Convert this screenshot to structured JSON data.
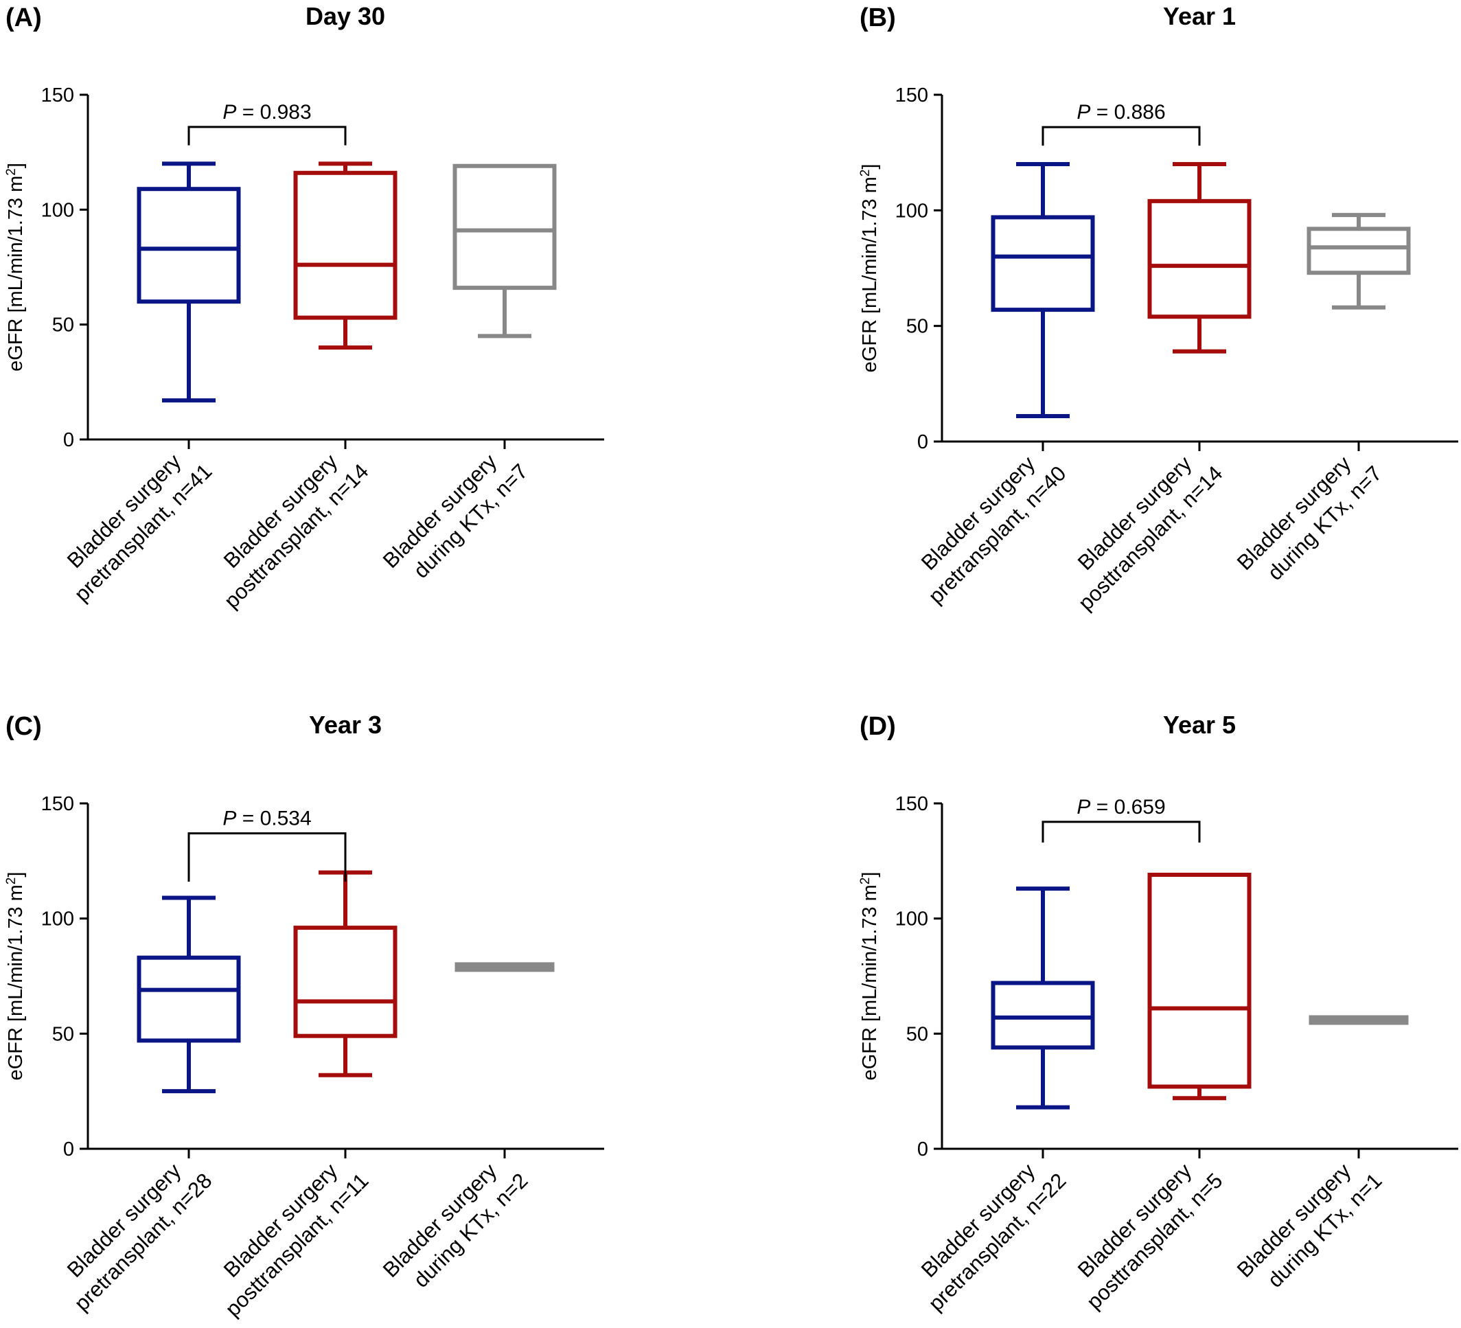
{
  "colors": {
    "pretransplant": "#0a1586",
    "posttransplant": "#a50d0d",
    "during_ktx": "#888888",
    "axis": "#000000"
  },
  "chart_data": [
    {
      "type": "box",
      "panel_label": "(A)",
      "title": "Day 30",
      "ylabel": "eGFR [mL/min/1.73 m2]",
      "ylim": [
        0,
        150
      ],
      "yticks": [
        0,
        50,
        100,
        150
      ],
      "ytick_labels": [
        "0",
        "50",
        "100",
        "150"
      ],
      "categories": [
        {
          "line1": "Bladder surgery",
          "line2": "pretransplant, n=41",
          "color_key": "pretransplant",
          "min": 17,
          "q1": 60,
          "median": 83,
          "q3": 109,
          "max": 120
        },
        {
          "line1": "Bladder surgery",
          "line2": "posttransplant, n=14",
          "color_key": "posttransplant",
          "min": 40,
          "q1": 53,
          "median": 76,
          "q3": 116,
          "max": 120
        },
        {
          "line1": "Bladder surgery",
          "line2": "during KTx, n=7",
          "color_key": "during_ktx",
          "min": 45,
          "q1": 66,
          "median": 91,
          "q3": 119,
          "max": 119
        }
      ],
      "comparison": {
        "from": 0,
        "to": 1,
        "p_symbol": "P",
        "p_text": " = 0.983",
        "bracket_y": 136,
        "drop_to": 128
      }
    },
    {
      "type": "box",
      "panel_label": "(B)",
      "title": "Year 1",
      "ylabel": "eGFR [mL/min/1.73 m2]",
      "ylim": [
        0,
        150
      ],
      "yticks": [
        0,
        50,
        100,
        150
      ],
      "ytick_labels": [
        "0",
        "50",
        "100",
        "150"
      ],
      "categories": [
        {
          "line1": "Bladder surgery",
          "line2": "pretransplant, n=40",
          "color_key": "pretransplant",
          "min": 11,
          "q1": 57,
          "median": 80,
          "q3": 97,
          "max": 120
        },
        {
          "line1": "Bladder surgery",
          "line2": "posttransplant, n=14",
          "color_key": "posttransplant",
          "min": 39,
          "q1": 54,
          "median": 76,
          "q3": 104,
          "max": 120
        },
        {
          "line1": "Bladder surgery",
          "line2": "during KTx, n=7",
          "color_key": "during_ktx",
          "min": 58,
          "q1": 73,
          "median": 84,
          "q3": 92,
          "max": 98
        }
      ],
      "comparison": {
        "from": 0,
        "to": 1,
        "p_symbol": "P",
        "p_text": " = 0.886",
        "bracket_y": 136,
        "drop_to": 128
      }
    },
    {
      "type": "box",
      "panel_label": "(C)",
      "title": "Year 3",
      "ylabel": "eGFR [mL/min/1.73 m2]",
      "ylim": [
        0,
        150
      ],
      "yticks": [
        0,
        50,
        100,
        150
      ],
      "ytick_labels": [
        "0",
        "50",
        "100",
        "150"
      ],
      "categories": [
        {
          "line1": "Bladder surgery",
          "line2": "pretransplant, n=28",
          "color_key": "pretransplant",
          "min": 25,
          "q1": 47,
          "median": 69,
          "q3": 83,
          "max": 109
        },
        {
          "line1": "Bladder surgery",
          "line2": "posttransplant, n=11",
          "color_key": "posttransplant",
          "min": 32,
          "q1": 49,
          "median": 64,
          "q3": 96,
          "max": 120
        },
        {
          "line1": "Bladder surgery",
          "line2": "during KTx, n=2",
          "color_key": "during_ktx",
          "min": 79,
          "q1": 79,
          "median": 80,
          "q3": 81,
          "max": 81
        }
      ],
      "comparison": {
        "from": 0,
        "to": 1,
        "p_symbol": "P",
        "p_text": " = 0.534",
        "bracket_y": 137,
        "drop_to": 116
      }
    },
    {
      "type": "box",
      "panel_label": "(D)",
      "title": "Year 5",
      "ylabel": "eGFR [mL/min/1.73 m2]",
      "ylim": [
        0,
        150
      ],
      "yticks": [
        0,
        50,
        100,
        150
      ],
      "ytick_labels": [
        "0",
        "50",
        "100",
        "150"
      ],
      "categories": [
        {
          "line1": "Bladder surgery",
          "line2": "pretransplant, n=22",
          "color_key": "pretransplant",
          "min": 18,
          "q1": 44,
          "median": 57,
          "q3": 72,
          "max": 113
        },
        {
          "line1": "Bladder surgery",
          "line2": "posttransplant, n=5",
          "color_key": "posttransplant",
          "min": 22,
          "q1": 27,
          "median": 61,
          "q3": 119,
          "max": 119
        },
        {
          "line1": "Bladder surgery",
          "line2": "during KTx, n=1",
          "color_key": "during_ktx",
          "min": 56,
          "q1": 56,
          "median": 57,
          "q3": 58,
          "max": 58
        }
      ],
      "comparison": {
        "from": 0,
        "to": 1,
        "p_symbol": "P",
        "p_text": " = 0.659",
        "bracket_y": 142,
        "drop_to": 133
      }
    }
  ]
}
